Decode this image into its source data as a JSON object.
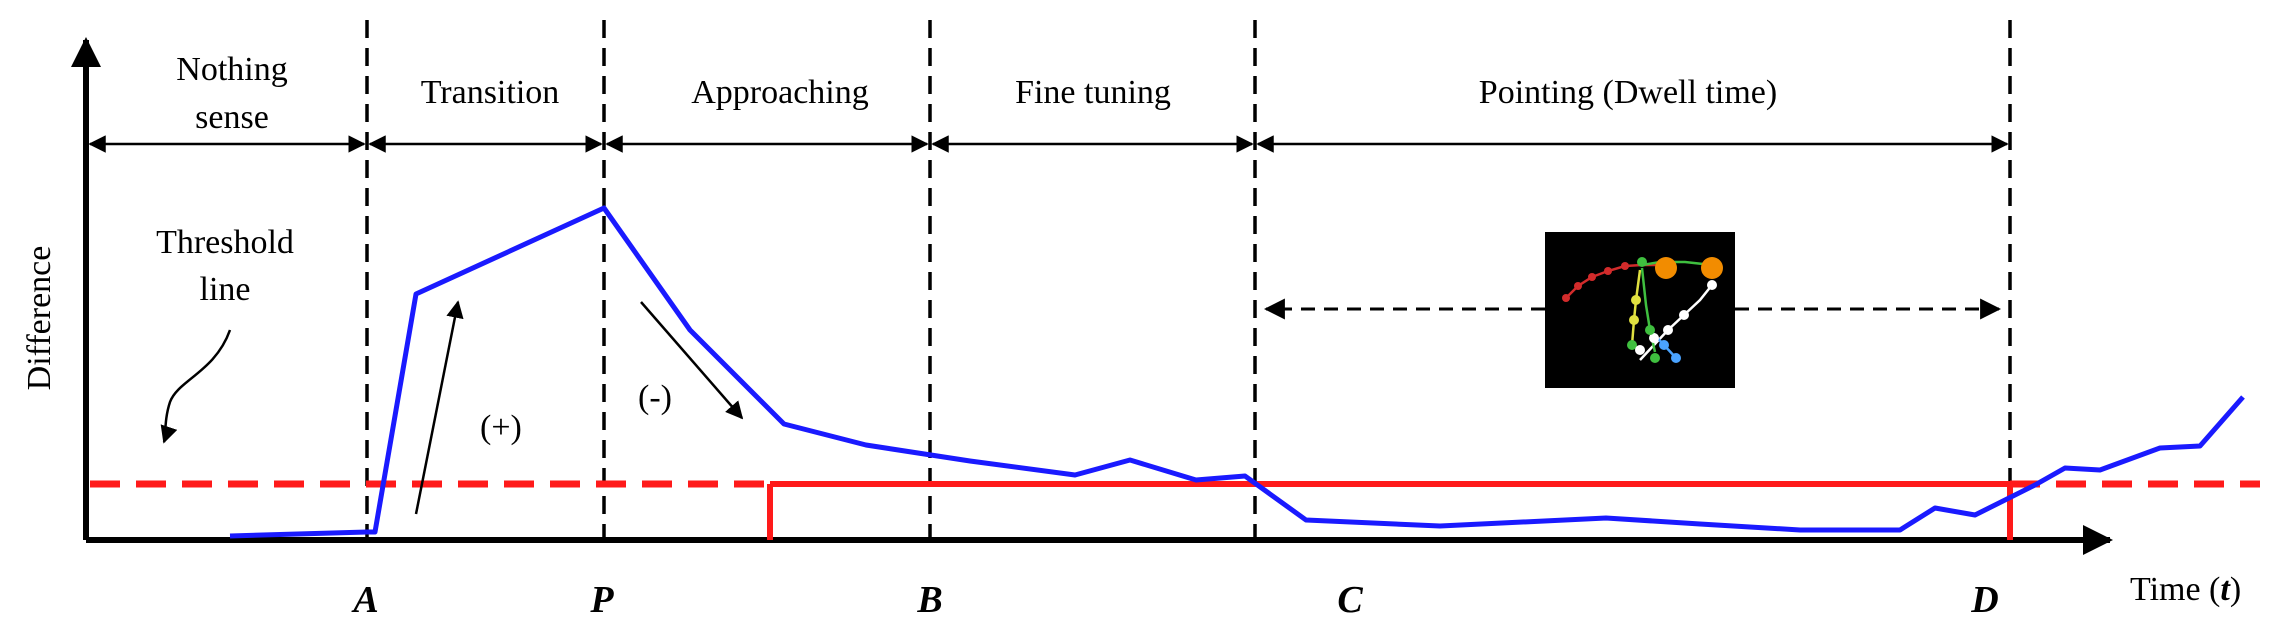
{
  "axes": {
    "y_label": "Difference",
    "x_label_prefix": "Time (",
    "x_label_var": "t",
    "x_label_suffix": ")"
  },
  "phases": [
    {
      "lines": [
        "Nothing",
        "sense"
      ]
    },
    {
      "lines": [
        "Transition"
      ]
    },
    {
      "lines": [
        "Approaching"
      ]
    },
    {
      "lines": [
        "Fine tuning"
      ]
    },
    {
      "lines": [
        "Pointing (Dwell time)"
      ]
    }
  ],
  "markers": [
    "A",
    "P",
    "B",
    "C",
    "D"
  ],
  "annotations": {
    "threshold": [
      "Threshold",
      "line"
    ],
    "increase": "(+)",
    "decrease": "(-)"
  },
  "colors": {
    "signal": "#1a1aff",
    "threshold": "#ff1a1a",
    "axes": "#000000"
  },
  "inset": {
    "description_icon": "hand-skeleton-icon"
  }
}
